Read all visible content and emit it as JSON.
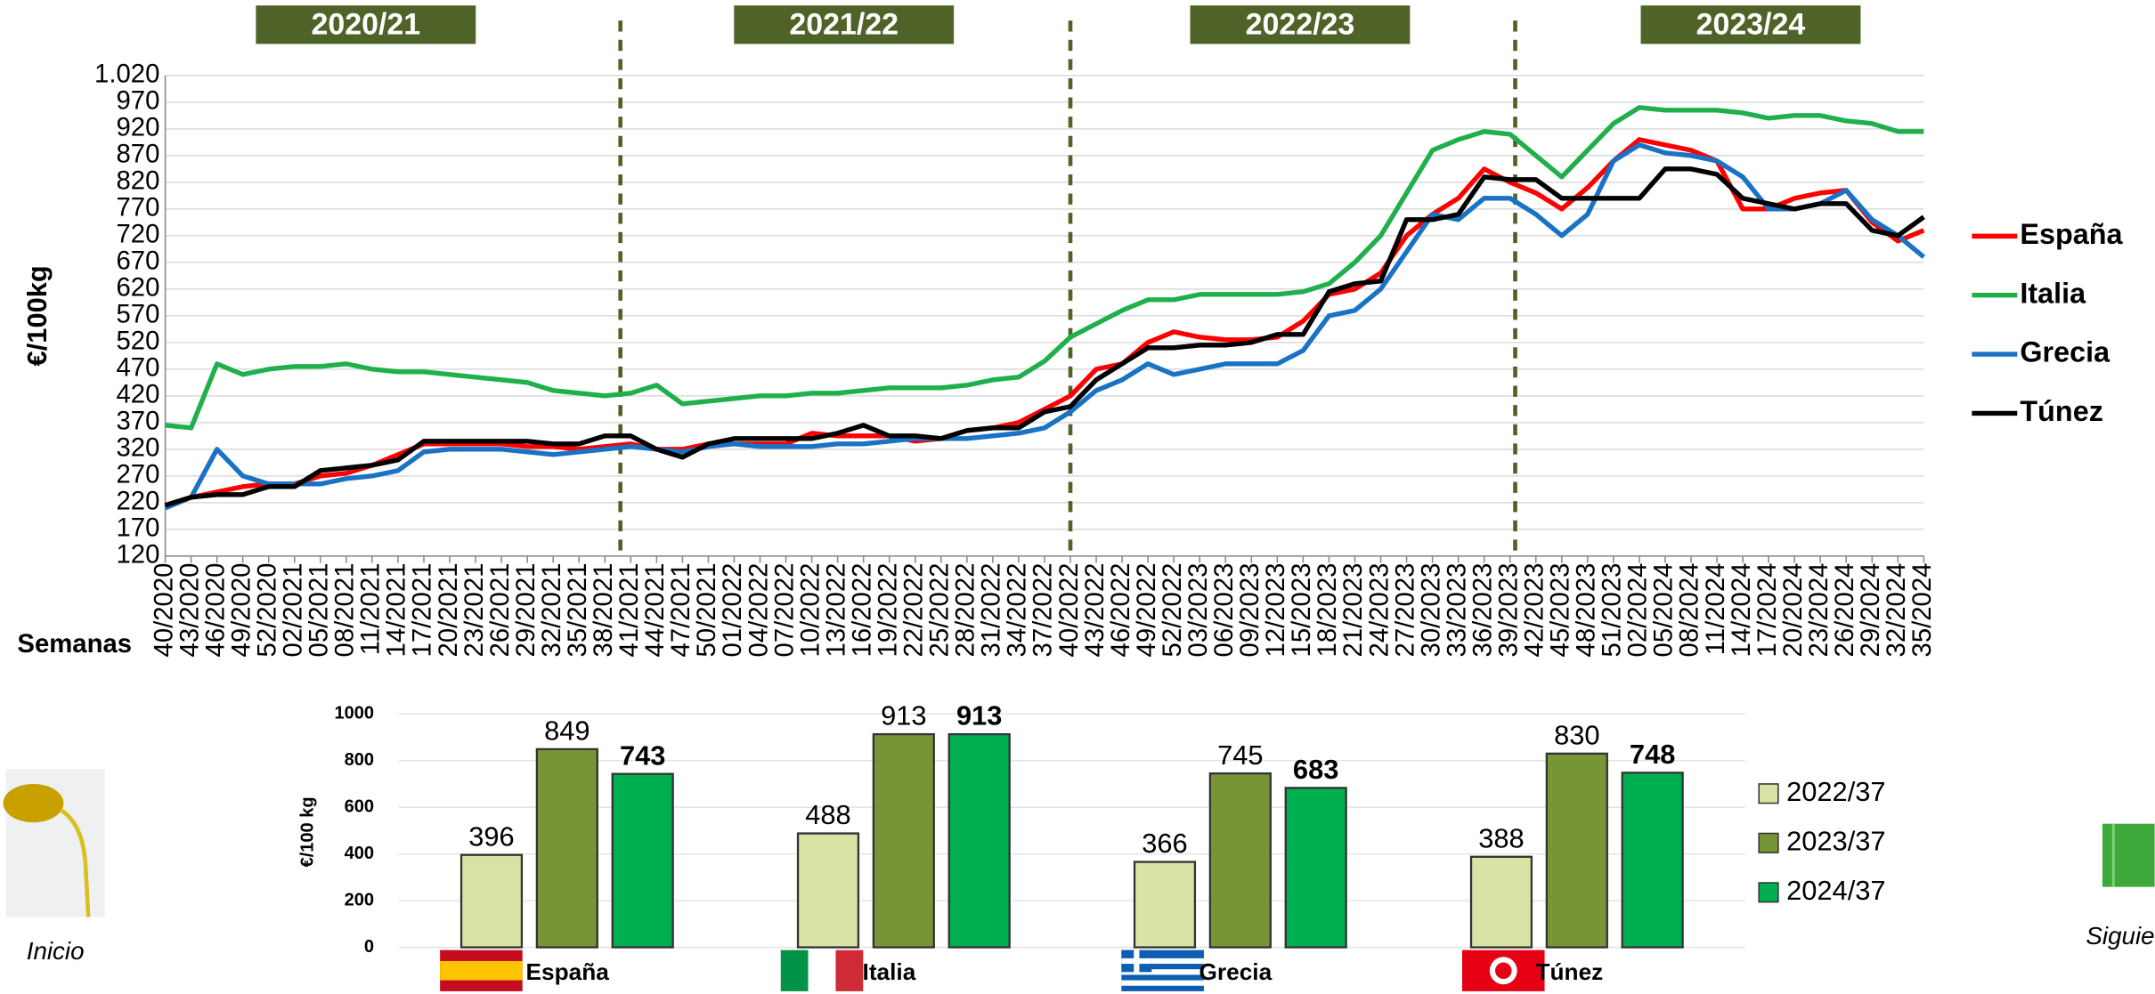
{
  "chart_data": [
    {
      "type": "line",
      "ylabel": "€/100kg",
      "xlabel": "Semanas",
      "seasons": [
        "2020/21",
        "2021/22",
        "2022/23",
        "2023/24"
      ],
      "categories": [
        "40/2020",
        "43/2020",
        "46/2020",
        "49/2020",
        "52/2020",
        "02/2021",
        "05/2021",
        "08/2021",
        "11/2021",
        "14/2021",
        "17/2021",
        "20/2021",
        "23/2021",
        "26/2021",
        "29/2021",
        "32/2021",
        "35/2021",
        "38/2021",
        "41/2021",
        "44/2021",
        "47/2021",
        "50/2021",
        "01/2022",
        "04/2022",
        "07/2022",
        "10/2022",
        "13/2022",
        "16/2022",
        "19/2022",
        "22/2022",
        "25/2022",
        "28/2022",
        "31/2022",
        "34/2022",
        "37/2022",
        "40/2022",
        "43/2022",
        "46/2022",
        "49/2022",
        "52/2022",
        "03/2023",
        "06/2023",
        "09/2023",
        "12/2023",
        "15/2023",
        "18/2023",
        "21/2023",
        "24/2023",
        "27/2023",
        "30/2023",
        "33/2023",
        "36/2023",
        "39/2023",
        "42/2023",
        "45/2023",
        "48/2023",
        "51/2023",
        "02/2024",
        "05/2024",
        "08/2024",
        "11/2024",
        "14/2024",
        "17/2024",
        "20/2024",
        "23/2024",
        "26/2024",
        "29/2024",
        "32/2024",
        "35/2024"
      ],
      "ylim": [
        120,
        1020
      ],
      "yticks": [
        120,
        170,
        220,
        270,
        320,
        370,
        420,
        470,
        520,
        570,
        620,
        670,
        720,
        770,
        820,
        870,
        920,
        970,
        {
          "value": 1020,
          "label": "1.020"
        }
      ],
      "grid": true,
      "series": [
        {
          "name": "España",
          "color": "#ff0000",
          "values": [
            215,
            230,
            240,
            250,
            255,
            255,
            270,
            275,
            290,
            310,
            330,
            330,
            330,
            330,
            325,
            325,
            320,
            325,
            330,
            320,
            320,
            330,
            330,
            330,
            330,
            350,
            345,
            345,
            345,
            335,
            340,
            355,
            360,
            370,
            395,
            420,
            470,
            480,
            520,
            540,
            530,
            525,
            525,
            530,
            560,
            610,
            620,
            650,
            720,
            760,
            790,
            845,
            820,
            800,
            770,
            810,
            860,
            900,
            890,
            880,
            860,
            770,
            770,
            790,
            800,
            805,
            745,
            710,
            730
          ]
        },
        {
          "name": "Italia",
          "color": "#1fb04c",
          "values": [
            365,
            360,
            480,
            460,
            470,
            475,
            475,
            480,
            470,
            465,
            465,
            460,
            455,
            450,
            445,
            430,
            425,
            420,
            425,
            440,
            405,
            410,
            415,
            420,
            420,
            425,
            425,
            430,
            435,
            435,
            435,
            440,
            450,
            455,
            485,
            530,
            555,
            580,
            600,
            600,
            610,
            610,
            610,
            610,
            615,
            630,
            670,
            720,
            800,
            880,
            900,
            915,
            910,
            870,
            830,
            880,
            930,
            960,
            955,
            955,
            955,
            950,
            940,
            945,
            945,
            935,
            930,
            915,
            915
          ]
        },
        {
          "name": "Grecia",
          "color": "#1a72c4",
          "values": [
            210,
            230,
            320,
            270,
            255,
            255,
            255,
            265,
            270,
            280,
            315,
            320,
            320,
            320,
            315,
            310,
            315,
            320,
            325,
            320,
            315,
            325,
            330,
            325,
            325,
            325,
            330,
            330,
            335,
            340,
            340,
            340,
            345,
            350,
            360,
            390,
            430,
            450,
            480,
            460,
            470,
            480,
            480,
            480,
            505,
            570,
            580,
            620,
            690,
            760,
            750,
            790,
            790,
            760,
            720,
            760,
            860,
            890,
            875,
            870,
            860,
            830,
            770,
            770,
            780,
            805,
            750,
            720,
            680
          ]
        },
        {
          "name": "Túnez",
          "color": "#000000",
          "values": [
            215,
            230,
            235,
            235,
            250,
            250,
            280,
            285,
            290,
            300,
            335,
            335,
            335,
            335,
            335,
            330,
            330,
            345,
            345,
            320,
            305,
            330,
            340,
            340,
            340,
            340,
            350,
            365,
            345,
            345,
            340,
            355,
            360,
            360,
            390,
            400,
            450,
            480,
            510,
            510,
            515,
            515,
            520,
            535,
            535,
            615,
            630,
            635,
            750,
            750,
            760,
            830,
            825,
            825,
            790,
            790,
            790,
            790,
            845,
            845,
            835,
            790,
            780,
            770,
            780,
            780,
            730,
            720,
            755
          ]
        }
      ]
    },
    {
      "type": "bar",
      "ylabel": "€/100 kg",
      "categories": [
        "España",
        "Italia",
        "Grecia",
        "Túnez"
      ],
      "ylim": [
        0,
        1000
      ],
      "yticks": [
        0,
        200,
        400,
        600,
        800,
        1000
      ],
      "grid": true,
      "series": [
        {
          "name": "2022/37",
          "color": "#d7e4a6",
          "values": [
            396,
            488,
            366,
            388
          ]
        },
        {
          "name": "2023/37",
          "color": "#789536",
          "values": [
            849,
            913,
            745,
            830
          ]
        },
        {
          "name": "2024/37",
          "color": "#00b050",
          "values": [
            743,
            913,
            683,
            748
          ]
        }
      ]
    }
  ],
  "nav": {
    "home": "Inicio",
    "next": "Siguie"
  }
}
